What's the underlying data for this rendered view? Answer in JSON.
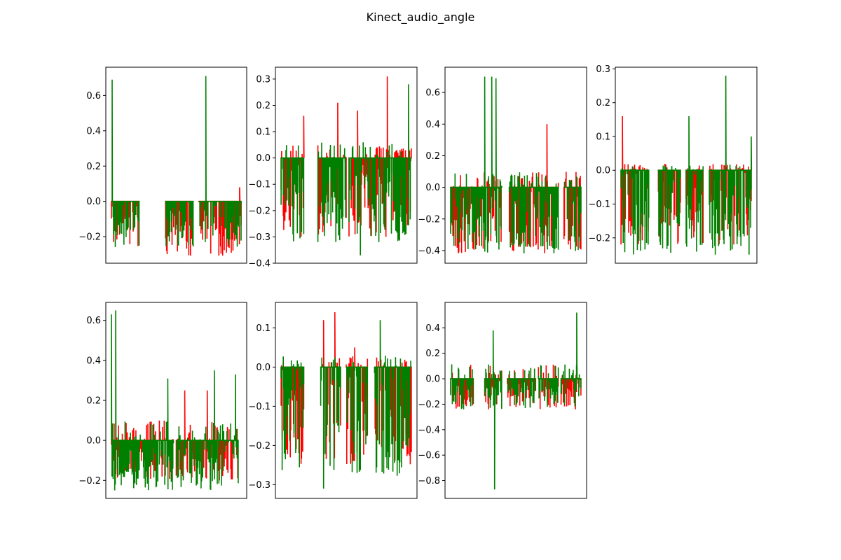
{
  "figure": {
    "title": "Kinect_audio_angle",
    "colors": {
      "series_a": "#ff0000",
      "series_b": "#008000"
    },
    "grid": false,
    "legend": "none",
    "x_ticks_visible": false
  },
  "chart_data": [
    {
      "type": "line",
      "ylim": [
        -0.35,
        0.76
      ],
      "yticks": [
        -0.2,
        0.0,
        0.2,
        0.4,
        0.6
      ],
      "ytick_labels": [
        "−0.2",
        "0.0",
        "0.2",
        "0.4",
        "0.6"
      ],
      "seed": 11,
      "segments": [
        [
          0.04,
          0.24
        ],
        [
          0.42,
          0.62
        ],
        [
          0.66,
          0.96
        ]
      ],
      "red_noise": [
        0.0,
        -0.31
      ],
      "green_noise": [
        0.0,
        -0.26
      ],
      "red_spikes": [
        [
          0.95,
          0.08
        ]
      ],
      "green_spikes": [
        [
          0.045,
          0.69
        ],
        [
          0.71,
          0.71
        ]
      ]
    },
    {
      "type": "line",
      "ylim": [
        -0.4,
        0.345
      ],
      "yticks": [
        -0.4,
        -0.3,
        -0.2,
        -0.1,
        0.0,
        0.1,
        0.2,
        0.3
      ],
      "ytick_labels": [
        "−0.4",
        "−0.3",
        "−0.2",
        "−0.1",
        "0.0",
        "0.1",
        "0.2",
        "0.3"
      ],
      "seed": 23,
      "segments": [
        [
          0.04,
          0.2
        ],
        [
          0.3,
          0.5
        ],
        [
          0.52,
          0.72
        ],
        [
          0.7,
          0.9
        ],
        [
          0.85,
          0.96
        ]
      ],
      "red_noise": [
        0.05,
        -0.3
      ],
      "green_noise": [
        0.06,
        -0.32
      ],
      "red_spikes": [
        [
          0.2,
          0.16
        ],
        [
          0.44,
          0.21
        ],
        [
          0.58,
          0.18
        ],
        [
          0.79,
          0.31
        ]
      ],
      "green_spikes": [
        [
          0.6,
          -0.37
        ],
        [
          0.94,
          0.28
        ]
      ]
    },
    {
      "type": "line",
      "ylim": [
        -0.48,
        0.76
      ],
      "yticks": [
        -0.4,
        -0.2,
        0.0,
        0.2,
        0.4,
        0.6
      ],
      "ytick_labels": [
        "−0.4",
        "−0.2",
        "0.0",
        "0.2",
        "0.4",
        "0.6"
      ],
      "seed": 37,
      "segments": [
        [
          0.04,
          0.4
        ],
        [
          0.45,
          0.6
        ],
        [
          0.5,
          0.8
        ],
        [
          0.84,
          0.96
        ]
      ],
      "red_noise": [
        0.1,
        -0.42
      ],
      "green_noise": [
        0.1,
        -0.42
      ],
      "red_spikes": [
        [
          0.72,
          0.4
        ]
      ],
      "green_spikes": [
        [
          0.28,
          0.7
        ],
        [
          0.33,
          0.7
        ],
        [
          0.36,
          0.69
        ]
      ]
    },
    {
      "type": "line",
      "ylim": [
        -0.275,
        0.305
      ],
      "yticks": [
        -0.2,
        -0.1,
        0.0,
        0.1,
        0.2,
        0.3
      ],
      "ytick_labels": [
        "−0.2",
        "−0.1",
        "0.0",
        "0.1",
        "0.2",
        "0.3"
      ],
      "seed": 41,
      "segments": [
        [
          0.04,
          0.24
        ],
        [
          0.3,
          0.46
        ],
        [
          0.5,
          0.62
        ],
        [
          0.66,
          0.96
        ]
      ],
      "red_noise": [
        0.02,
        -0.22
      ],
      "green_noise": [
        0.02,
        -0.25
      ],
      "red_spikes": [
        [
          0.05,
          0.16
        ]
      ],
      "green_spikes": [
        [
          0.52,
          0.16
        ],
        [
          0.78,
          0.28
        ],
        [
          0.96,
          0.1
        ]
      ]
    },
    {
      "type": "line",
      "ylim": [
        -0.29,
        0.69
      ],
      "yticks": [
        -0.2,
        0.0,
        0.2,
        0.4,
        0.6
      ],
      "ytick_labels": [
        "−0.2",
        "0.0",
        "0.2",
        "0.4",
        "0.6"
      ],
      "seed": 53,
      "segments": [
        [
          0.04,
          0.36
        ],
        [
          0.28,
          0.48
        ],
        [
          0.5,
          0.68
        ],
        [
          0.68,
          0.94
        ]
      ],
      "red_noise": [
        0.1,
        -0.2
      ],
      "green_noise": [
        0.1,
        -0.25
      ],
      "red_spikes": [
        [
          0.56,
          0.25
        ],
        [
          0.72,
          0.25
        ]
      ],
      "green_spikes": [
        [
          0.04,
          0.63
        ],
        [
          0.07,
          0.65
        ],
        [
          0.44,
          0.31
        ],
        [
          0.77,
          0.35
        ],
        [
          0.92,
          0.33
        ]
      ]
    },
    {
      "type": "line",
      "ylim": [
        -0.335,
        0.165
      ],
      "yticks": [
        -0.3,
        -0.2,
        -0.1,
        0.0,
        0.1
      ],
      "ytick_labels": [
        "−0.3",
        "−0.2",
        "−0.1",
        "0.0",
        "0.1"
      ],
      "seed": 67,
      "segments": [
        [
          0.04,
          0.2
        ],
        [
          0.32,
          0.46
        ],
        [
          0.5,
          0.65
        ],
        [
          0.7,
          0.86
        ],
        [
          0.86,
          0.96
        ]
      ],
      "red_noise": [
        0.03,
        -0.25
      ],
      "green_noise": [
        0.03,
        -0.28
      ],
      "red_spikes": [
        [
          0.34,
          0.12
        ],
        [
          0.42,
          0.14
        ],
        [
          0.56,
          0.05
        ]
      ],
      "green_spikes": [
        [
          0.34,
          -0.31
        ],
        [
          0.74,
          0.12
        ]
      ]
    },
    {
      "type": "line",
      "ylim": [
        -0.94,
        0.6
      ],
      "yticks": [
        -0.8,
        -0.6,
        -0.4,
        -0.2,
        0.0,
        0.2,
        0.4
      ],
      "ytick_labels": [
        "−0.8",
        "−0.6",
        "−0.4",
        "−0.2",
        "0.0",
        "0.2",
        "0.4"
      ],
      "seed": 79,
      "segments": [
        [
          0.04,
          0.2
        ],
        [
          0.28,
          0.4
        ],
        [
          0.44,
          0.64
        ],
        [
          0.66,
          0.8
        ],
        [
          0.82,
          0.96
        ]
      ],
      "red_noise": [
        0.12,
        -0.24
      ],
      "green_noise": [
        0.12,
        -0.24
      ],
      "red_spikes": [],
      "green_spikes": [
        [
          0.34,
          0.38
        ],
        [
          0.35,
          -0.87
        ],
        [
          0.93,
          0.52
        ]
      ]
    }
  ]
}
